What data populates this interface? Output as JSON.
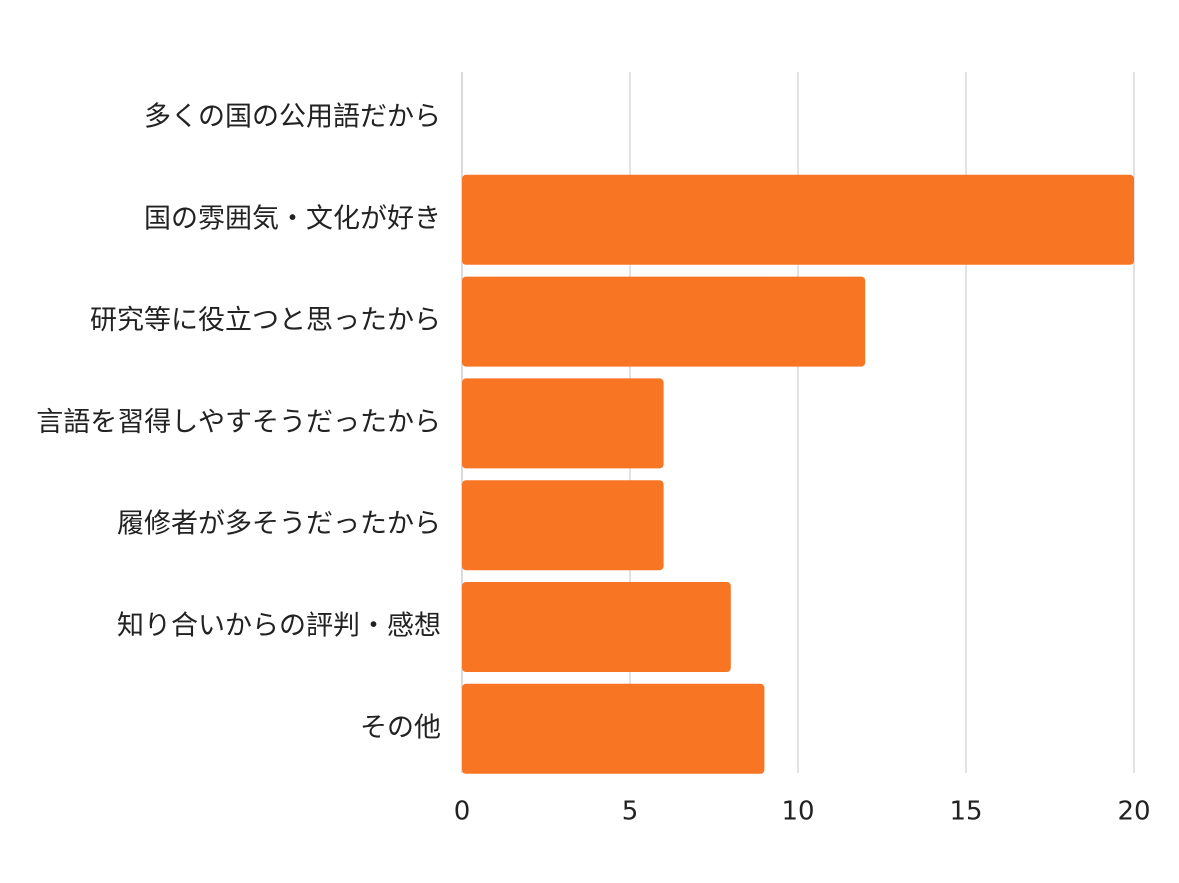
{
  "chart_data": {
    "type": "bar",
    "orientation": "horizontal",
    "title": "",
    "xlabel": "",
    "ylabel": "",
    "categories": [
      "多くの国の公用語だから",
      "国の雰囲気・文化が好き",
      "研究等に役立つと思ったから",
      "言語を習得しやすそうだったから",
      "履修者が多そうだったから",
      "知り合いからの評判・感想",
      "その他"
    ],
    "values": [
      0,
      20,
      12,
      6,
      6,
      8,
      9
    ],
    "xlim": [
      0,
      20
    ],
    "x_ticks": [
      0,
      5,
      10,
      15,
      20
    ],
    "x_tick_labels": [
      "0",
      "5",
      "10",
      "15",
      "20"
    ],
    "grid": true,
    "legend": "none",
    "bar_color": "#f87524"
  }
}
